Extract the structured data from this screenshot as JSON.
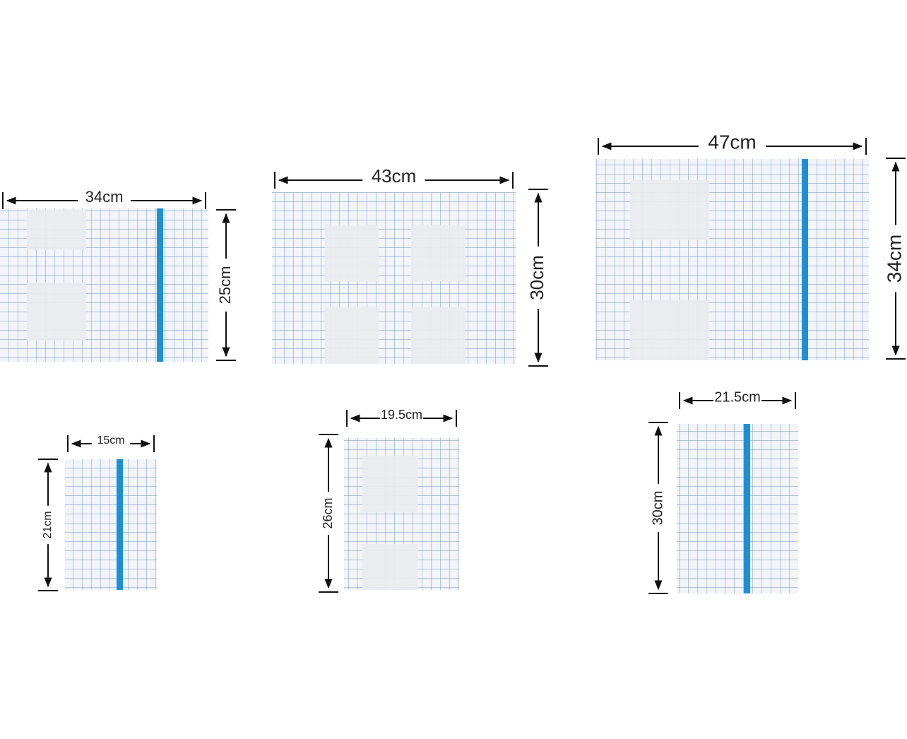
{
  "sheets": [
    {
      "width_label": "34cm",
      "height_label": "25cm"
    },
    {
      "width_label": "43cm",
      "height_label": "30cm"
    },
    {
      "width_label": "47cm",
      "height_label": "34cm"
    },
    {
      "width_label": "15cm",
      "height_label": "21cm"
    },
    {
      "width_label": "19.5cm",
      "height_label": "26cm"
    },
    {
      "width_label": "21.5cm",
      "height_label": "30cm"
    }
  ]
}
